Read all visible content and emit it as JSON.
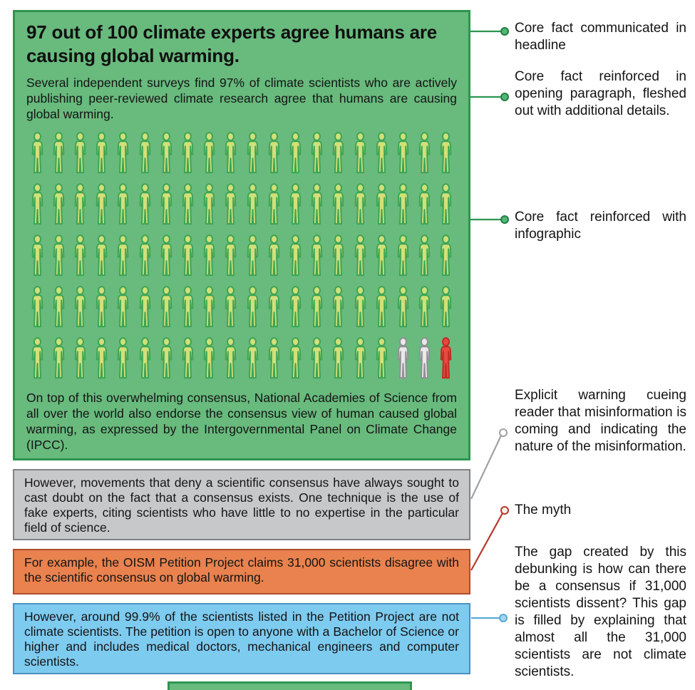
{
  "green_box": {
    "headline": "97 out of 100 climate experts agree humans are causing global warming.",
    "intro_paragraph": "Several independent surveys find 97% of climate scientists who are actively publishing peer-reviewed climate research agree that humans are causing global warming.",
    "closing_paragraph": "On top of this overwhelming consensus, National Academies of Science from all over the world also endorse the consensus view of human caused global warming, as expressed by the Intergovernmental Panel on Climate Change (IPCC)."
  },
  "infographic": {
    "type": "pictograph",
    "total": 100,
    "columns": 20,
    "rows": 5,
    "agree_count": 97,
    "no_position_count": 2,
    "disagree_count": 1
  },
  "gray_box": {
    "text": "However, movements that deny a scientific consensus have always sought to cast doubt on the fact that a consensus exists. One technique is the use of fake experts, citing scientists who have little to no expertise in the particular field of science."
  },
  "orange_box": {
    "text": "For example, the OISM Petition Project claims 31,000 scientists disagree with the scientific consensus on global warming."
  },
  "blue_box": {
    "text": "However, around 99.9% of the scientists listed in the Petition Project are not climate scientists. The petition is open to anyone with a Bachelor of Science or higher and includes medical doctors, mechanical engineers and computer scientists."
  },
  "annotations": [
    {
      "label": "Core fact communicated in headline",
      "connector_color": "#2d9650"
    },
    {
      "label": "Core fact reinforced in opening paragraph, fleshed out with additional details.",
      "connector_color": "#2d9650"
    },
    {
      "label": "Core fact reinforced with infographic",
      "connector_color": "#2d9650"
    },
    {
      "label": "Explicit warning cueing reader that misinformation is coming and indicating the nature of the misinformation.",
      "connector_color": "#9fa1a3"
    },
    {
      "label": "The myth",
      "connector_color": "#b5392b"
    },
    {
      "label": "The gap created by this debunking is how can there be a consensus if 31,000 scientists dissent? This gap is filled by explaining that almost all the 31,000 scientists are not climate scientists.",
      "connector_color": "#5aa9d6"
    }
  ],
  "colors": {
    "green_box_fill": "#68ba7d",
    "green_box_border": "#2d9650",
    "person_agree_fill": "#d2e078",
    "person_agree_stroke": "#3ca455",
    "person_no_position_fill": "#e9e9e9",
    "person_no_position_stroke": "#8f9194",
    "person_disagree_fill": "#e84840",
    "person_disagree_stroke": "#be2d23",
    "gray_box_fill": "#c7c8ca",
    "gray_box_border": "#7f8285",
    "orange_box_fill": "#e9824e",
    "orange_box_border": "#ad4d2d",
    "blue_box_fill": "#7ecbf0",
    "blue_box_border": "#4c90c0",
    "annotation_green": "#2d9650",
    "annotation_gray": "#9fa1a3",
    "annotation_red": "#b5392b",
    "annotation_blue": "#5aa9d6",
    "text_color": "#141414"
  }
}
